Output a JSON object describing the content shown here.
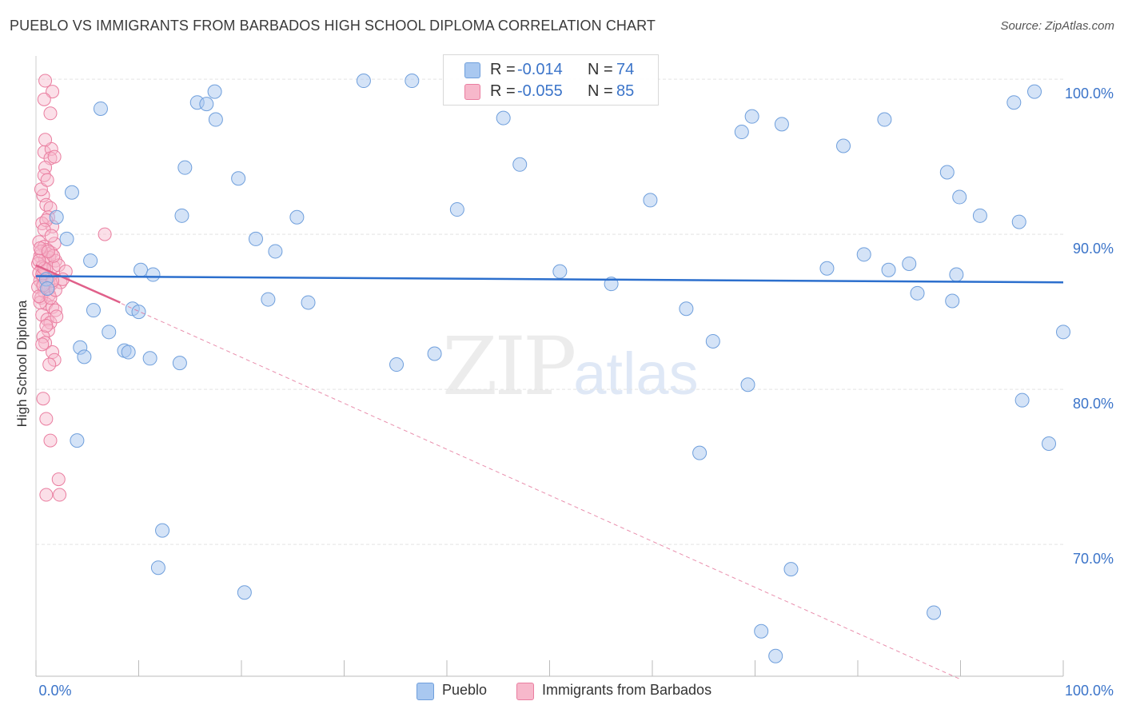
{
  "header": {
    "title": "PUEBLO VS IMMIGRANTS FROM BARBADOS HIGH SCHOOL DIPLOMA CORRELATION CHART",
    "source": "Source: ZipAtlas.com"
  },
  "watermark": {
    "zip": "ZIP",
    "atlas": "atlas"
  },
  "legend_top": {
    "rows": [
      {
        "r_label": "R =",
        "r_value": "-0.014",
        "n_label": "N =",
        "n_value": "74",
        "color": "#a9c8f0"
      },
      {
        "r_label": "R =",
        "r_value": "-0.055",
        "n_label": "N =",
        "n_value": "85",
        "color": "#f7b8cb"
      }
    ]
  },
  "legend_bottom": {
    "items": [
      {
        "label": "Pueblo",
        "color": "#a9c8f0"
      },
      {
        "label": "Immigrants from Barbados",
        "color": "#f7b8cb"
      }
    ]
  },
  "colors": {
    "pueblo_fill": "#a9c8f0",
    "pueblo_stroke": "#6f9fdc",
    "pueblo_line": "#2c6fcd",
    "barbados_fill": "#f7b8cb",
    "barbados_stroke": "#ea7ea0",
    "barbados_line": "#e0608a",
    "tick_label": "#3b74c9",
    "grid": "#e3e3e3"
  },
  "chart_data": {
    "type": "scatter",
    "title": "PUEBLO VS IMMIGRANTS FROM BARBADOS HIGH SCHOOL DIPLOMA CORRELATION CHART",
    "xlabel": "",
    "ylabel": "High School Diploma",
    "xlim": [
      0,
      100
    ],
    "ylim": [
      61.5,
      101.5
    ],
    "x_tick_labels": [
      "0.0%",
      "100.0%"
    ],
    "y_ticks": [
      70,
      80,
      90,
      100
    ],
    "y_tick_labels": [
      "70.0%",
      "80.0%",
      "90.0%",
      "100.0%"
    ],
    "grid": true,
    "legend_position": "top-center",
    "series": [
      {
        "name": "Pueblo",
        "r": -0.014,
        "n": 74,
        "trend": {
          "x": [
            0,
            100
          ],
          "y": [
            87.3,
            86.9
          ],
          "style": "solid"
        },
        "points": [
          [
            6.3,
            98.1
          ],
          [
            15.7,
            98.5
          ],
          [
            16.6,
            98.4
          ],
          [
            17.4,
            99.2
          ],
          [
            17.5,
            97.4
          ],
          [
            31.9,
            99.9
          ],
          [
            36.6,
            99.9
          ],
          [
            3.5,
            92.7
          ],
          [
            2.0,
            91.1
          ],
          [
            14.5,
            94.3
          ],
          [
            14.2,
            91.2
          ],
          [
            19.7,
            93.6
          ],
          [
            25.4,
            91.1
          ],
          [
            41.0,
            91.6
          ],
          [
            45.5,
            97.5
          ],
          [
            47.1,
            94.5
          ],
          [
            59.8,
            92.2
          ],
          [
            68.7,
            96.6
          ],
          [
            69.7,
            97.6
          ],
          [
            72.6,
            97.1
          ],
          [
            78.6,
            95.7
          ],
          [
            82.6,
            97.4
          ],
          [
            88.7,
            94.0
          ],
          [
            89.9,
            92.4
          ],
          [
            91.9,
            91.2
          ],
          [
            95.2,
            98.5
          ],
          [
            97.2,
            99.2
          ],
          [
            95.7,
            90.8
          ],
          [
            3.0,
            89.7
          ],
          [
            5.3,
            88.3
          ],
          [
            10.2,
            87.7
          ],
          [
            11.4,
            87.4
          ],
          [
            21.4,
            89.7
          ],
          [
            23.3,
            88.9
          ],
          [
            1.0,
            87.1
          ],
          [
            1.1,
            86.5
          ],
          [
            22.6,
            85.8
          ],
          [
            5.6,
            85.1
          ],
          [
            9.4,
            85.2
          ],
          [
            10.0,
            85.0
          ],
          [
            7.1,
            83.7
          ],
          [
            8.6,
            82.5
          ],
          [
            9.0,
            82.4
          ],
          [
            4.3,
            82.7
          ],
          [
            4.7,
            82.1
          ],
          [
            11.1,
            82.0
          ],
          [
            14.0,
            81.7
          ],
          [
            35.1,
            81.6
          ],
          [
            38.8,
            82.3
          ],
          [
            63.3,
            85.2
          ],
          [
            65.9,
            83.1
          ],
          [
            77.0,
            87.8
          ],
          [
            80.6,
            88.7
          ],
          [
            83.0,
            87.7
          ],
          [
            85.0,
            88.1
          ],
          [
            85.8,
            86.2
          ],
          [
            89.6,
            87.4
          ],
          [
            89.2,
            85.7
          ],
          [
            100.0,
            83.7
          ],
          [
            69.3,
            80.3
          ],
          [
            96.0,
            79.3
          ],
          [
            98.6,
            76.5
          ],
          [
            4.0,
            76.7
          ],
          [
            64.6,
            75.9
          ],
          [
            12.3,
            70.9
          ],
          [
            11.9,
            68.5
          ],
          [
            20.3,
            66.9
          ],
          [
            73.5,
            68.4
          ],
          [
            70.6,
            64.4
          ],
          [
            87.4,
            65.6
          ],
          [
            72.0,
            62.8
          ],
          [
            51.0,
            87.6
          ],
          [
            56.0,
            86.8
          ],
          [
            26.5,
            85.6
          ]
        ]
      },
      {
        "name": "Immigrants from Barbados",
        "r": -0.055,
        "n": 85,
        "trend_solid": {
          "x": [
            0,
            8.2
          ],
          "y": [
            88.0,
            85.6
          ]
        },
        "trend_dashed": {
          "x": [
            0,
            90
          ],
          "y": [
            88.0,
            61.3
          ]
        },
        "points": [
          [
            0.9,
            99.9
          ],
          [
            1.6,
            99.2
          ],
          [
            0.8,
            98.7
          ],
          [
            1.4,
            97.8
          ],
          [
            0.8,
            95.3
          ],
          [
            1.5,
            95.5
          ],
          [
            1.4,
            94.9
          ],
          [
            0.9,
            94.3
          ],
          [
            0.8,
            93.8
          ],
          [
            0.7,
            92.5
          ],
          [
            1.0,
            91.9
          ],
          [
            1.4,
            91.7
          ],
          [
            1.2,
            91.1
          ],
          [
            0.6,
            90.7
          ],
          [
            1.6,
            90.5
          ],
          [
            1.0,
            90.9
          ],
          [
            6.7,
            90.0
          ],
          [
            0.3,
            89.5
          ],
          [
            0.8,
            89.2
          ],
          [
            1.1,
            89.0
          ],
          [
            1.5,
            88.8
          ],
          [
            0.4,
            88.6
          ],
          [
            0.9,
            88.4
          ],
          [
            1.3,
            88.5
          ],
          [
            1.9,
            88.3
          ],
          [
            0.2,
            88.1
          ],
          [
            0.6,
            87.9
          ],
          [
            1.0,
            87.7
          ],
          [
            1.7,
            87.9
          ],
          [
            2.2,
            88.0
          ],
          [
            0.3,
            87.5
          ],
          [
            0.7,
            87.3
          ],
          [
            1.2,
            87.2
          ],
          [
            0.4,
            87.0
          ],
          [
            0.9,
            86.9
          ],
          [
            1.5,
            86.8
          ],
          [
            2.4,
            86.9
          ],
          [
            0.2,
            86.6
          ],
          [
            0.8,
            86.3
          ],
          [
            1.3,
            86.1
          ],
          [
            0.5,
            85.9
          ],
          [
            1.0,
            85.5
          ],
          [
            1.6,
            85.3
          ],
          [
            1.9,
            85.1
          ],
          [
            0.6,
            84.8
          ],
          [
            1.1,
            84.5
          ],
          [
            1.4,
            84.3
          ],
          [
            1.2,
            83.8
          ],
          [
            0.7,
            83.4
          ],
          [
            0.9,
            83.0
          ],
          [
            1.6,
            82.4
          ],
          [
            1.8,
            81.9
          ],
          [
            1.3,
            81.6
          ],
          [
            0.7,
            79.4
          ],
          [
            1.0,
            78.1
          ],
          [
            1.4,
            76.7
          ],
          [
            2.2,
            74.2
          ],
          [
            1.0,
            73.2
          ],
          [
            2.3,
            73.2
          ],
          [
            2.9,
            87.6
          ],
          [
            0.5,
            88.9
          ],
          [
            1.8,
            89.4
          ],
          [
            0.4,
            85.6
          ],
          [
            1.2,
            86.5
          ],
          [
            0.6,
            87.4
          ],
          [
            1.7,
            88.6
          ],
          [
            0.3,
            86.0
          ],
          [
            2.0,
            84.7
          ],
          [
            0.8,
            90.3
          ],
          [
            1.5,
            89.9
          ],
          [
            0.5,
            92.9
          ],
          [
            1.1,
            93.5
          ],
          [
            0.9,
            96.1
          ],
          [
            1.8,
            95.0
          ],
          [
            0.4,
            89.1
          ],
          [
            2.6,
            87.1
          ],
          [
            1.0,
            84.1
          ],
          [
            0.6,
            82.9
          ],
          [
            1.4,
            85.9
          ],
          [
            0.8,
            87.8
          ],
          [
            1.9,
            86.4
          ],
          [
            0.3,
            88.3
          ],
          [
            1.2,
            88.9
          ],
          [
            0.7,
            86.7
          ],
          [
            1.6,
            87.0
          ]
        ]
      }
    ]
  }
}
